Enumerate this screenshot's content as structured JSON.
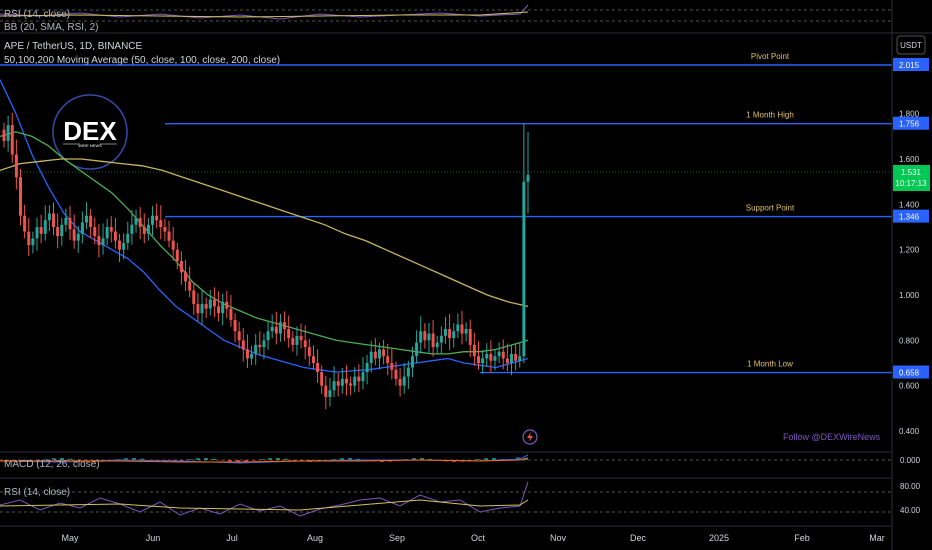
{
  "header": {
    "symbol": "APE / TetherUS, 1D, BINANCE",
    "indicator": "50,100,200 Moving Average (50, close, 100, close, 200, close)",
    "currency": "USDT"
  },
  "top_pane": {
    "rsi_label": "RSI (14, close)",
    "bb_label": "BB (20, SMA, RSI, 2)"
  },
  "logo": {
    "text": "DEX",
    "subtext": "WIRE NEWS"
  },
  "watermark": "Follow @DEXWireNews",
  "colors": {
    "background": "#000000",
    "up": "#26a69a",
    "down": "#ef5350",
    "level_line": "#2962ff",
    "ma50": "#2962ff",
    "ma100": "#4caf50",
    "ma200": "#c8b560",
    "current_price_tag": "#00c853",
    "rsi_line": "#7e57c2",
    "rsi_ma": "#d4c35a"
  },
  "chart_data": {
    "type": "candlestick",
    "title": "APE / TetherUS, 1D, BINANCE",
    "x_axis": {
      "tick_labels": [
        "May",
        "Jun",
        "Jul",
        "Aug",
        "Sep",
        "Oct",
        "Nov",
        "Dec",
        "2025",
        "Feb",
        "Mar"
      ]
    },
    "y_axis": {
      "scale": "linear",
      "range": [
        0.3,
        2.1
      ],
      "tick_labels": [
        "2.015",
        "1.800",
        "1.756",
        "1.600",
        "1.400",
        "1.346",
        "1.200",
        "1.000",
        "0.800",
        "0.658",
        "0.600",
        "0.400"
      ]
    },
    "current_price": {
      "value": "1.531",
      "countdown": "10:17:13"
    },
    "levels": [
      {
        "name": "Pivot Point",
        "value": 2.015
      },
      {
        "name": "1 Month High",
        "value": 1.756
      },
      {
        "name": "Support Point",
        "value": 1.346
      },
      {
        "name": "1 Month Low",
        "value": 0.658
      }
    ],
    "close_series": [
      1.68,
      1.75,
      1.62,
      1.52,
      1.35,
      1.28,
      1.22,
      1.25,
      1.3,
      1.27,
      1.33,
      1.36,
      1.3,
      1.26,
      1.31,
      1.34,
      1.29,
      1.24,
      1.27,
      1.32,
      1.35,
      1.3,
      1.26,
      1.22,
      1.25,
      1.3,
      1.28,
      1.24,
      1.2,
      1.23,
      1.27,
      1.31,
      1.34,
      1.3,
      1.27,
      1.31,
      1.35,
      1.33,
      1.3,
      1.28,
      1.24,
      1.2,
      1.15,
      1.1,
      1.06,
      1.02,
      0.96,
      0.92,
      0.96,
      0.94,
      0.98,
      0.95,
      0.92,
      0.97,
      0.94,
      0.89,
      0.84,
      0.8,
      0.76,
      0.72,
      0.74,
      0.78,
      0.77,
      0.8,
      0.84,
      0.86,
      0.83,
      0.88,
      0.85,
      0.81,
      0.78,
      0.82,
      0.8,
      0.77,
      0.73,
      0.7,
      0.66,
      0.6,
      0.55,
      0.58,
      0.62,
      0.6,
      0.63,
      0.61,
      0.6,
      0.64,
      0.62,
      0.66,
      0.7,
      0.75,
      0.72,
      0.76,
      0.73,
      0.7,
      0.67,
      0.63,
      0.6,
      0.64,
      0.68,
      0.73,
      0.79,
      0.84,
      0.8,
      0.83,
      0.77,
      0.79,
      0.82,
      0.85,
      0.81,
      0.84,
      0.87,
      0.83,
      0.85,
      0.78,
      0.73,
      0.7,
      0.72,
      0.74,
      0.71,
      0.73,
      0.75,
      0.72,
      0.7,
      0.74,
      0.71,
      0.73,
      1.5,
      1.53
    ],
    "series": [
      {
        "name": "MA 50",
        "values": [
          1.95,
          1.8,
          1.62,
          1.48,
          1.36,
          1.28,
          1.24,
          1.2,
          1.16,
          1.1,
          1.02,
          0.95,
          0.9,
          0.85,
          0.8,
          0.77,
          0.74,
          0.72,
          0.7,
          0.68,
          0.67,
          0.66,
          0.665,
          0.67,
          0.68,
          0.69,
          0.7,
          0.71,
          0.72,
          0.7,
          0.69,
          0.68,
          0.7,
          0.72
        ]
      },
      {
        "name": "MA 100",
        "values": [
          1.7,
          1.72,
          1.7,
          1.66,
          1.6,
          1.55,
          1.5,
          1.45,
          1.38,
          1.3,
          1.22,
          1.15,
          1.06,
          1.0,
          0.96,
          0.93,
          0.9,
          0.88,
          0.86,
          0.84,
          0.82,
          0.8,
          0.79,
          0.78,
          0.77,
          0.76,
          0.75,
          0.74,
          0.74,
          0.75,
          0.75,
          0.76,
          0.78,
          0.8
        ]
      },
      {
        "name": "MA 200",
        "values": [
          1.55,
          1.58,
          1.59,
          1.6,
          1.6,
          1.59,
          1.58,
          1.57,
          1.55,
          1.52,
          1.49,
          1.46,
          1.43,
          1.4,
          1.37,
          1.34,
          1.31,
          1.27,
          1.24,
          1.2,
          1.16,
          1.12,
          1.08,
          1.04,
          1.0,
          0.97,
          0.95
        ]
      }
    ],
    "macd_pane": {
      "label": "MACD (12, 26, close)",
      "tick_labels": [
        "0.000"
      ]
    },
    "rsi_pane": {
      "label": "RSI (14, close)",
      "tick_labels": [
        "80.00",
        "40.00"
      ]
    }
  }
}
